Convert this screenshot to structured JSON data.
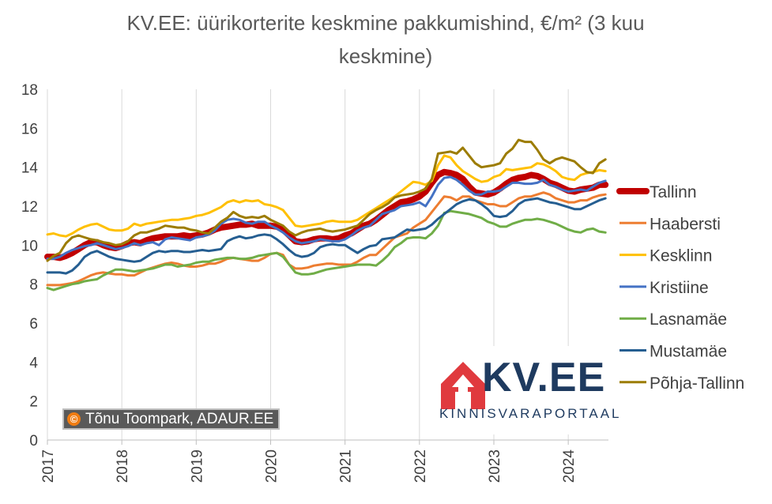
{
  "chart_data": {
    "type": "line",
    "title": "KV.EE: üürikorterite keskmine pakkumishind, €/m² (3 kuu keskmine)",
    "title_lines": [
      "KV.EE: üürikorterite keskmine pakkumishind, €/m² (3 kuu",
      "keskmine)"
    ],
    "xlabel": "",
    "ylabel": "",
    "ylim": [
      0,
      18
    ],
    "y_ticks": [
      "0",
      "2",
      "4",
      "6",
      "8",
      "10",
      "12",
      "14",
      "16",
      "18"
    ],
    "x_ticks": [
      "2017",
      "2018",
      "2019",
      "2020",
      "2021",
      "2022",
      "2023",
      "2024"
    ],
    "xlim": [
      2017.0,
      2024.54
    ],
    "grid": "vertical",
    "legend_position": "right",
    "x": [
      2017.0,
      2017.083,
      2017.167,
      2017.25,
      2017.333,
      2017.417,
      2017.5,
      2017.583,
      2017.667,
      2017.75,
      2017.833,
      2017.917,
      2018.0,
      2018.083,
      2018.167,
      2018.25,
      2018.333,
      2018.417,
      2018.5,
      2018.583,
      2018.667,
      2018.75,
      2018.833,
      2018.917,
      2019.0,
      2019.083,
      2019.167,
      2019.25,
      2019.333,
      2019.417,
      2019.5,
      2019.583,
      2019.667,
      2019.75,
      2019.833,
      2019.917,
      2020.0,
      2020.083,
      2020.167,
      2020.25,
      2020.333,
      2020.417,
      2020.5,
      2020.583,
      2020.667,
      2020.75,
      2020.833,
      2020.917,
      2021.0,
      2021.083,
      2021.167,
      2021.25,
      2021.333,
      2021.417,
      2021.5,
      2021.583,
      2021.667,
      2021.75,
      2021.833,
      2021.917,
      2022.0,
      2022.083,
      2022.167,
      2022.25,
      2022.333,
      2022.417,
      2022.5,
      2022.583,
      2022.667,
      2022.75,
      2022.833,
      2022.917,
      2023.0,
      2023.083,
      2023.167,
      2023.25,
      2023.333,
      2023.417,
      2023.5,
      2023.583,
      2023.667,
      2023.75,
      2023.833,
      2023.917,
      2024.0,
      2024.083,
      2024.167,
      2024.25,
      2024.333,
      2024.417,
      2024.5
    ],
    "series": [
      {
        "name": "Tallinn",
        "color": "#c00000",
        "width": 8,
        "values": [
          9.4,
          9.4,
          9.35,
          9.45,
          9.6,
          9.8,
          10.0,
          10.15,
          10.15,
          10.0,
          9.9,
          9.85,
          9.95,
          10.1,
          10.15,
          10.1,
          10.25,
          10.35,
          10.4,
          10.45,
          10.45,
          10.45,
          10.5,
          10.45,
          10.5,
          10.55,
          10.65,
          10.8,
          10.9,
          10.95,
          11.0,
          11.05,
          11.05,
          11.1,
          11.0,
          11.0,
          11.0,
          10.95,
          10.8,
          10.5,
          10.2,
          10.15,
          10.2,
          10.3,
          10.35,
          10.35,
          10.3,
          10.35,
          10.5,
          10.6,
          10.8,
          11.0,
          11.1,
          11.3,
          11.55,
          11.8,
          12.0,
          12.2,
          12.25,
          12.35,
          12.5,
          12.75,
          13.2,
          13.6,
          13.75,
          13.7,
          13.6,
          13.4,
          13.0,
          12.7,
          12.65,
          12.6,
          12.7,
          12.9,
          13.15,
          13.35,
          13.45,
          13.5,
          13.6,
          13.55,
          13.4,
          13.2,
          13.1,
          12.95,
          12.8,
          12.75,
          12.85,
          12.9,
          12.95,
          13.1,
          13.1
        ]
      },
      {
        "name": "Haabersti",
        "color": "#ed7d31",
        "width": 3,
        "values": [
          7.95,
          7.95,
          7.95,
          8.0,
          8.05,
          8.15,
          8.3,
          8.45,
          8.55,
          8.6,
          8.55,
          8.5,
          8.5,
          8.45,
          8.45,
          8.6,
          8.75,
          8.85,
          8.95,
          9.05,
          9.1,
          9.05,
          8.95,
          8.9,
          8.9,
          8.95,
          9.05,
          9.05,
          9.15,
          9.3,
          9.35,
          9.3,
          9.25,
          9.2,
          9.2,
          9.35,
          9.55,
          9.6,
          9.5,
          9.0,
          8.8,
          8.8,
          8.85,
          8.95,
          9.0,
          9.05,
          9.05,
          9.0,
          9.0,
          9.0,
          9.15,
          9.35,
          9.5,
          9.5,
          9.8,
          10.1,
          10.4,
          10.5,
          10.6,
          10.9,
          11.1,
          11.3,
          11.7,
          12.1,
          12.5,
          12.45,
          12.3,
          12.5,
          12.5,
          12.3,
          12.2,
          12.1,
          12.1,
          12.0,
          12.0,
          12.2,
          12.4,
          12.5,
          12.5,
          12.6,
          12.7,
          12.6,
          12.4,
          12.3,
          12.2,
          12.2,
          12.3,
          12.3,
          12.45,
          12.55,
          12.6
        ]
      },
      {
        "name": "Kesklinn",
        "color": "#ffc000",
        "width": 3,
        "values": [
          10.55,
          10.6,
          10.5,
          10.45,
          10.6,
          10.8,
          10.95,
          11.05,
          11.1,
          10.95,
          10.8,
          10.75,
          10.75,
          10.85,
          11.1,
          11.0,
          11.1,
          11.15,
          11.2,
          11.25,
          11.3,
          11.3,
          11.35,
          11.4,
          11.5,
          11.55,
          11.65,
          11.8,
          11.95,
          12.2,
          12.3,
          12.2,
          12.3,
          12.25,
          12.3,
          12.1,
          12.05,
          11.95,
          11.8,
          11.4,
          11.0,
          10.95,
          11.0,
          11.05,
          11.1,
          11.2,
          11.25,
          11.2,
          11.2,
          11.2,
          11.3,
          11.5,
          11.7,
          11.9,
          12.1,
          12.3,
          12.5,
          12.75,
          13.0,
          13.25,
          13.2,
          13.1,
          13.3,
          14.1,
          14.6,
          14.5,
          14.1,
          13.8,
          13.6,
          13.4,
          13.25,
          13.3,
          13.5,
          13.6,
          13.9,
          13.85,
          13.9,
          13.95,
          14.0,
          14.2,
          14.15,
          14.0,
          13.8,
          13.5,
          13.4,
          13.35,
          13.6,
          13.7,
          13.75,
          13.85,
          13.8
        ]
      },
      {
        "name": "Kristiine",
        "color": "#4472c4",
        "width": 3,
        "values": [
          9.3,
          9.3,
          9.4,
          9.6,
          9.75,
          9.85,
          9.95,
          10.0,
          10.1,
          10.0,
          9.9,
          9.8,
          9.85,
          9.95,
          10.1,
          10.0,
          10.1,
          10.15,
          10.0,
          10.3,
          10.4,
          10.35,
          10.3,
          10.25,
          10.4,
          10.45,
          10.55,
          10.75,
          11.1,
          11.3,
          11.35,
          11.3,
          11.15,
          11.1,
          11.2,
          11.2,
          11.0,
          10.85,
          10.65,
          10.4,
          10.2,
          10.1,
          10.15,
          10.2,
          10.3,
          10.25,
          10.2,
          10.2,
          10.3,
          10.5,
          10.75,
          10.9,
          11.0,
          11.3,
          11.6,
          11.7,
          11.8,
          12.0,
          12.05,
          12.1,
          12.2,
          12.0,
          12.5,
          13.1,
          13.45,
          13.5,
          13.35,
          13.1,
          12.8,
          12.6,
          12.6,
          12.75,
          12.75,
          12.8,
          13.0,
          13.2,
          13.2,
          13.15,
          13.15,
          13.2,
          13.35,
          13.1,
          13.0,
          12.85,
          12.75,
          12.8,
          12.85,
          12.8,
          13.0,
          13.2,
          13.3
        ]
      },
      {
        "name": "Lasnamäe",
        "color": "#70ad47",
        "width": 3,
        "values": [
          7.8,
          7.7,
          7.8,
          7.9,
          8.0,
          8.05,
          8.15,
          8.2,
          8.25,
          8.45,
          8.6,
          8.75,
          8.75,
          8.7,
          8.65,
          8.7,
          8.75,
          8.8,
          8.9,
          9.0,
          9.0,
          8.9,
          8.95,
          9.0,
          9.1,
          9.15,
          9.15,
          9.25,
          9.3,
          9.35,
          9.35,
          9.3,
          9.3,
          9.35,
          9.45,
          9.5,
          9.55,
          9.6,
          9.4,
          9.0,
          8.6,
          8.5,
          8.5,
          8.55,
          8.65,
          8.75,
          8.8,
          8.85,
          8.9,
          8.95,
          9.0,
          9.0,
          9.0,
          8.95,
          9.2,
          9.5,
          9.9,
          10.1,
          10.35,
          10.4,
          10.4,
          10.35,
          10.6,
          11.0,
          11.65,
          11.75,
          11.7,
          11.65,
          11.6,
          11.5,
          11.4,
          11.2,
          11.1,
          10.95,
          10.95,
          11.1,
          11.2,
          11.3,
          11.3,
          11.35,
          11.3,
          11.2,
          11.1,
          10.95,
          10.8,
          10.7,
          10.65,
          10.8,
          10.85,
          10.7,
          10.65
        ]
      },
      {
        "name": "Mustamäe",
        "color": "#255e91",
        "width": 3,
        "values": [
          8.6,
          8.6,
          8.6,
          8.55,
          8.7,
          9.0,
          9.4,
          9.6,
          9.7,
          9.55,
          9.4,
          9.3,
          9.25,
          9.2,
          9.15,
          9.2,
          9.4,
          9.6,
          9.7,
          9.65,
          9.7,
          9.7,
          9.65,
          9.65,
          9.7,
          9.75,
          9.7,
          9.75,
          9.8,
          10.2,
          10.35,
          10.45,
          10.35,
          10.4,
          10.5,
          10.55,
          10.5,
          10.3,
          10.05,
          9.75,
          9.5,
          9.4,
          9.45,
          9.6,
          9.9,
          10.0,
          10.05,
          10.0,
          10.0,
          9.8,
          9.6,
          9.8,
          9.95,
          10.0,
          10.3,
          10.35,
          10.4,
          10.6,
          10.8,
          10.75,
          10.8,
          10.85,
          11.05,
          11.35,
          11.6,
          11.85,
          12.1,
          12.25,
          12.35,
          12.3,
          12.1,
          11.85,
          11.5,
          11.45,
          11.5,
          11.75,
          12.1,
          12.3,
          12.35,
          12.4,
          12.3,
          12.2,
          12.15,
          12.05,
          11.95,
          11.85,
          11.85,
          12.0,
          12.15,
          12.3,
          12.4
        ]
      },
      {
        "name": "Põhja-Tallinn",
        "color": "#9c7c00",
        "width": 3,
        "values": [
          9.2,
          9.45,
          9.6,
          10.1,
          10.4,
          10.5,
          10.4,
          10.3,
          10.25,
          10.15,
          10.1,
          10.0,
          10.05,
          10.2,
          10.5,
          10.65,
          10.65,
          10.75,
          10.85,
          11.0,
          10.95,
          10.9,
          10.9,
          10.8,
          10.75,
          10.65,
          10.6,
          10.9,
          11.2,
          11.4,
          11.7,
          11.5,
          11.4,
          11.45,
          11.4,
          11.5,
          11.3,
          11.15,
          11.0,
          10.7,
          10.5,
          10.65,
          10.75,
          10.8,
          10.85,
          10.75,
          10.7,
          10.75,
          10.8,
          10.9,
          11.0,
          11.3,
          11.6,
          11.8,
          11.95,
          12.15,
          12.45,
          12.55,
          12.6,
          12.65,
          12.75,
          12.9,
          13.4,
          14.7,
          14.75,
          14.8,
          14.7,
          15.0,
          14.6,
          14.2,
          14.0,
          14.05,
          14.1,
          14.2,
          14.7,
          14.95,
          15.4,
          15.3,
          15.3,
          14.9,
          14.4,
          14.2,
          14.4,
          14.5,
          14.4,
          14.3,
          14.0,
          13.75,
          13.7,
          14.2,
          14.4
        ]
      }
    ]
  },
  "credit": {
    "symbol": "©",
    "text": "Tõnu Toompark, ADAUR.EE"
  },
  "logo": {
    "name": "KV.EE",
    "tagline": "KINNISVARAPORTAAL",
    "icon": "house-arrow-icon",
    "color": "#1e3a5f",
    "accent": "#e03a3e"
  }
}
